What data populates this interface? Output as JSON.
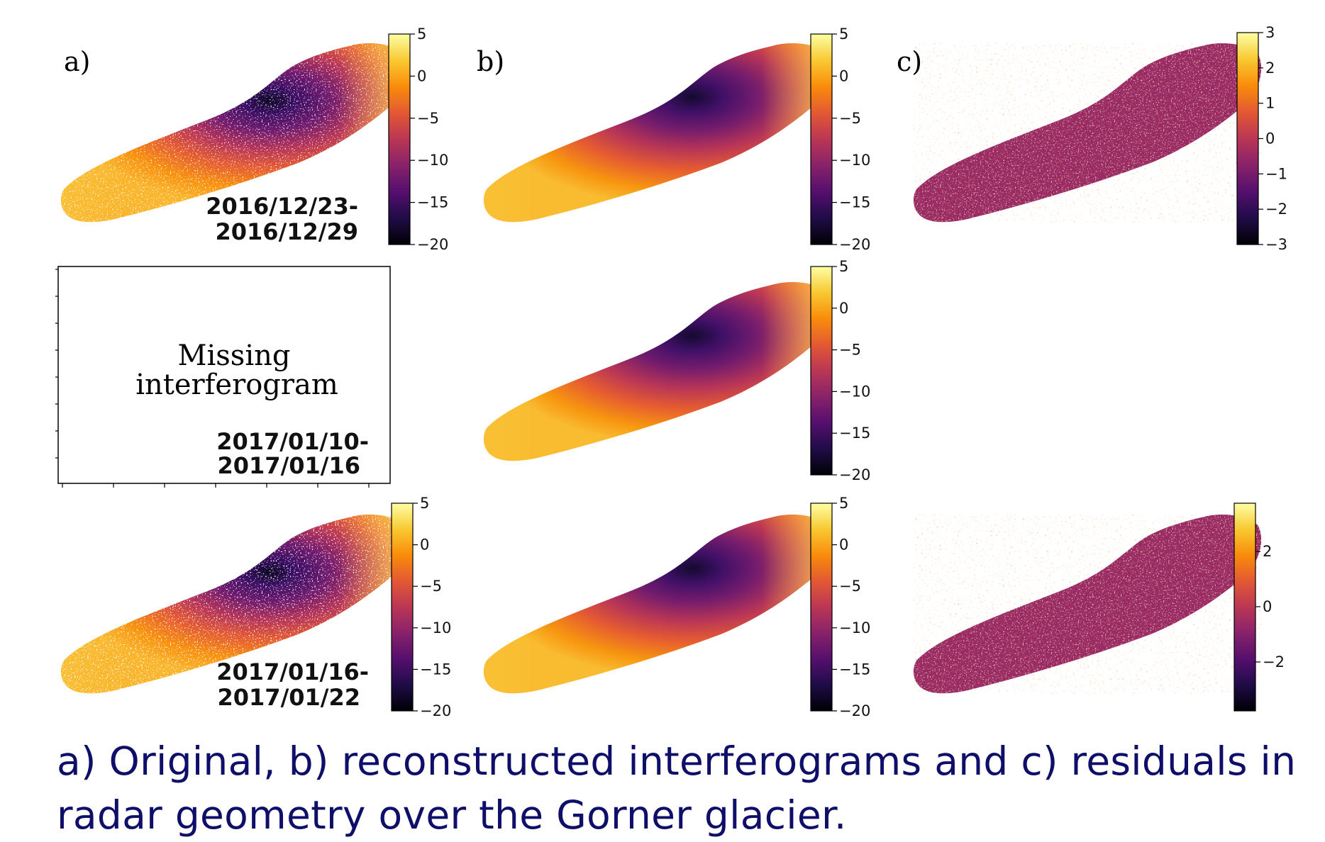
{
  "panel_labels": {
    "a": "a)",
    "b": "b)",
    "c": "c)"
  },
  "date_ranges": {
    "row1": [
      "2016/12/23-",
      "2016/12/29"
    ],
    "row2": [
      "2017/01/10-",
      "2017/01/16"
    ],
    "row3": [
      "2017/01/16-",
      "2017/01/22"
    ]
  },
  "missing_panel": {
    "line1": "Missing",
    "line2": "interferogram"
  },
  "colormap": "inferno",
  "colormap_stops": [
    "#000004",
    "#1f0c48",
    "#550f6d",
    "#88226a",
    "#ba3655",
    "#e35933",
    "#f98c0a",
    "#f9c932",
    "#fcffa4"
  ],
  "colorbars": {
    "ab_row1": [
      "5",
      "0",
      "−5",
      "−10",
      "−15",
      "−20"
    ],
    "b_row2": [
      "5",
      "0",
      "−5",
      "−10",
      "−15",
      "−20"
    ],
    "ab_row3": [
      "5",
      "0",
      "−5",
      "−10",
      "−15",
      "−20"
    ],
    "c_row1": [
      "3",
      "2",
      "1",
      "0",
      "−1",
      "−2",
      "−3"
    ],
    "c_row3": [
      "2",
      "0",
      "−2"
    ]
  },
  "caption": "a) Original, b) reconstructed interferograms and c) residuals in radar geometry over the Gorner glacier."
}
